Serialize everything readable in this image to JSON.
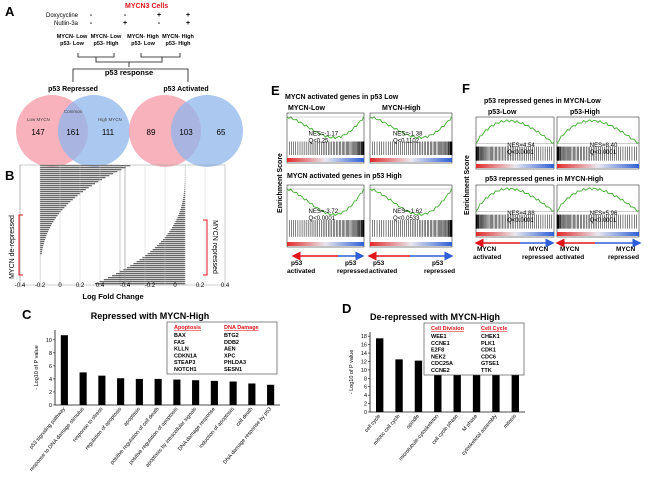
{
  "colors": {
    "red": "#e1141c",
    "blue": "#3a6fd8",
    "green": "#3cb02a",
    "venn_pink": "#f6a5b0",
    "venn_blue": "#8fb6ec",
    "venn_mid": "#8f8fc7"
  },
  "panel_a": {
    "label": "A",
    "title": "MYCN3 Cells",
    "row_labels": [
      "Doxycycline",
      "Nutlin-3a"
    ],
    "row_marks": [
      [
        "-",
        "-",
        "+",
        "+"
      ],
      [
        "-",
        "+",
        "-",
        "+"
      ]
    ],
    "group_labels": [
      [
        "MYCN- Low",
        "p53- Low"
      ],
      [
        "MYCN- Low",
        "p53- High"
      ],
      [
        "MYCN- High",
        "p53- Low"
      ],
      [
        "MYCN- High",
        "p53- High"
      ]
    ],
    "response_label": "p53 response",
    "venn_repressed": {
      "title": "p53 Repressed",
      "left_label": "Low MYCN",
      "mid_label": "Common",
      "right_label": "High MYCN",
      "left": 147,
      "mid": 161,
      "right": 111
    },
    "venn_activated": {
      "title": "p53 Activated",
      "left": 89,
      "mid": 103,
      "right": 65
    }
  },
  "panel_b": {
    "label": "B",
    "left_annotation": "MYCN de-repressed",
    "right_annotation": "MYCN repressed",
    "xlabel": "Log Fold Change",
    "ticks_left": [
      "-0.4",
      "-0.2",
      "0",
      "0.2",
      "0.4"
    ],
    "ticks_right": [
      "-0.4",
      "-0.2",
      "0",
      "0.2",
      "0.4"
    ]
  },
  "panel_c": {
    "label": "C",
    "title": "Repressed with MYCN-High",
    "ylabel": "- Log10 of P value",
    "box": {
      "h1": "Apoptosis",
      "h2": "DNA Damage",
      "col1": [
        "BAX",
        "FAS",
        "KLLN",
        "CDKN1A",
        "STEAP3",
        "NOTCH1"
      ],
      "col2": [
        "BTG2",
        "DDB2",
        "AEN",
        "XPC",
        "PHLDA3",
        "SESN1"
      ]
    }
  },
  "panel_d": {
    "label": "D",
    "title": "De-repressed with MYCN-High",
    "ylabel": "- Log10 of P value",
    "box": {
      "h1": "Cell Division",
      "h2": "Cell Cycle",
      "col1": [
        "WEE1",
        "CCNE1",
        "E2F8",
        "NEK2",
        "CDC25A",
        "CCNE2"
      ],
      "col2": [
        "CHEK1",
        "PLK1",
        "CDK1",
        "CDC6",
        "GTSE1",
        "TTK"
      ]
    }
  },
  "panel_e": {
    "label": "E",
    "title_top": "MYCN activated genes in p53 Low",
    "sub_left": "MYCN-Low",
    "sub_right": "MYCN-High",
    "title_bottom": "MYCN activated genes in p53 High",
    "ylabel": "Enrichment Score",
    "nes": [
      [
        "NES=-1.17",
        "Q<0.25"
      ],
      [
        "NES=-1.38",
        "Q<0.1102"
      ],
      [
        "NES=-3.72",
        "Q<0.0001"
      ],
      [
        "NES=-1.62",
        "Q<0.0533"
      ]
    ],
    "axis_left": [
      "p53",
      "activated"
    ],
    "axis_right": [
      "p53",
      "repressed"
    ]
  },
  "panel_f": {
    "label": "F",
    "title_top": "p53 repressed genes in MYCN-Low",
    "sub_left": "p53-Low",
    "sub_right": "p53-High",
    "title_bottom": "p53 repressed genes in MYCN-High",
    "ylabel": "Enrichment Score",
    "nes": [
      [
        "NES=4.54",
        "Q<0.0001"
      ],
      [
        "NES=8.40",
        "Q<0.0001"
      ],
      [
        "NES=4.88",
        "Q<0.0001"
      ],
      [
        "NES=5.96",
        "Q<0.0001"
      ]
    ],
    "axis_left": [
      "MYCN",
      "activated"
    ],
    "axis_right": [
      "MYCN",
      "repressed"
    ]
  },
  "chart_data": [
    {
      "type": "bar",
      "panel": "C",
      "title": "Repressed with MYCN-High",
      "ylabel": "- Log10 of P value",
      "categories": [
        "p53 signaling pathway",
        "response to DNA damage stimulus",
        "response to stress",
        "regulation of apoptosis",
        "apoptosis",
        "positive regulation of cell death",
        "positive regulation of apoptosis",
        "apoptosis by intracellular signals",
        "DNA damage response",
        "induction of apoptosis",
        "cell death",
        "DNA damage response by p53"
      ],
      "values": [
        10.7,
        5.0,
        4.5,
        4.1,
        4.0,
        4.0,
        3.9,
        3.8,
        3.7,
        3.6,
        3.3,
        3.1
      ],
      "yticks": [
        0,
        2,
        4,
        6,
        8,
        10
      ],
      "ylim": [
        0,
        11.5
      ]
    },
    {
      "type": "bar",
      "panel": "D",
      "title": "De-repressed with MYCN-High",
      "ylabel": "- Log10 of P value",
      "categories": [
        "cell cycle",
        "mitotic cell cycle",
        "spindle",
        "microtubule-cytoskeleton",
        "cell cycle phase",
        "M phase",
        "cytoskeletal assembly",
        "mitosis"
      ],
      "values": [
        17.5,
        12.5,
        12.2,
        11.0,
        10.5,
        10.3,
        9.0,
        8.8
      ],
      "yticks": [
        0,
        2,
        4,
        6,
        8,
        10,
        12,
        14,
        16,
        18
      ],
      "ylim": [
        0,
        19
      ]
    }
  ]
}
